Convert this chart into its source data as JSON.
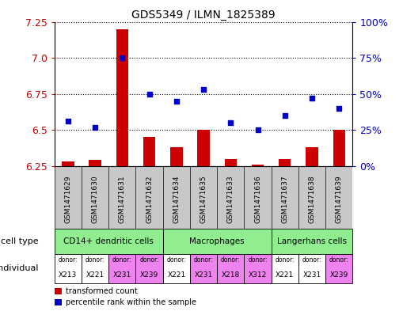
{
  "title": "GDS5349 / ILMN_1825389",
  "samples": [
    "GSM1471629",
    "GSM1471630",
    "GSM1471631",
    "GSM1471632",
    "GSM1471634",
    "GSM1471635",
    "GSM1471633",
    "GSM1471636",
    "GSM1471637",
    "GSM1471638",
    "GSM1471639"
  ],
  "bar_values": [
    6.28,
    6.29,
    7.2,
    6.45,
    6.38,
    6.5,
    6.3,
    6.26,
    6.3,
    6.38,
    6.5
  ],
  "scatter_values": [
    6.56,
    6.52,
    7.0,
    6.75,
    6.7,
    6.78,
    6.55,
    6.5,
    6.6,
    6.72,
    6.65
  ],
  "bar_baseline": 6.25,
  "ylim": [
    6.25,
    7.25
  ],
  "yticks": [
    6.25,
    6.5,
    6.75,
    7.0,
    7.25
  ],
  "right_yticks": [
    0,
    25,
    50,
    75,
    100
  ],
  "bar_color": "#cc0000",
  "scatter_color": "#0000cc",
  "grid_color": "#000000",
  "tick_area_color": "#c8c8c8",
  "cell_types": [
    {
      "label": "CD14+ dendritic cells",
      "start": 0,
      "end": 4,
      "color": "#90ee90"
    },
    {
      "label": "Macrophages",
      "start": 4,
      "end": 8,
      "color": "#90ee90"
    },
    {
      "label": "Langerhans cells",
      "start": 8,
      "end": 11,
      "color": "#90ee90"
    }
  ],
  "individuals": [
    {
      "donor": "X213",
      "start": 0,
      "end": 1,
      "color": "#ffffff"
    },
    {
      "donor": "X221",
      "start": 1,
      "end": 2,
      "color": "#ffffff"
    },
    {
      "donor": "X231",
      "start": 2,
      "end": 3,
      "color": "#ee82ee"
    },
    {
      "donor": "X239",
      "start": 3,
      "end": 4,
      "color": "#ee82ee"
    },
    {
      "donor": "X221",
      "start": 4,
      "end": 5,
      "color": "#ffffff"
    },
    {
      "donor": "X231",
      "start": 5,
      "end": 6,
      "color": "#ee82ee"
    },
    {
      "donor": "X218",
      "start": 6,
      "end": 7,
      "color": "#ee82ee"
    },
    {
      "donor": "X312",
      "start": 7,
      "end": 8,
      "color": "#ee82ee"
    },
    {
      "donor": "X221",
      "start": 8,
      "end": 9,
      "color": "#ffffff"
    },
    {
      "donor": "X231",
      "start": 9,
      "end": 10,
      "color": "#ffffff"
    },
    {
      "donor": "X239",
      "start": 10,
      "end": 11,
      "color": "#ee82ee"
    }
  ],
  "cell_type_label": "cell type",
  "individual_label": "individual",
  "legend_bar": "transformed count",
  "legend_scatter": "percentile rank within the sample",
  "bg_color": "#ffffff"
}
